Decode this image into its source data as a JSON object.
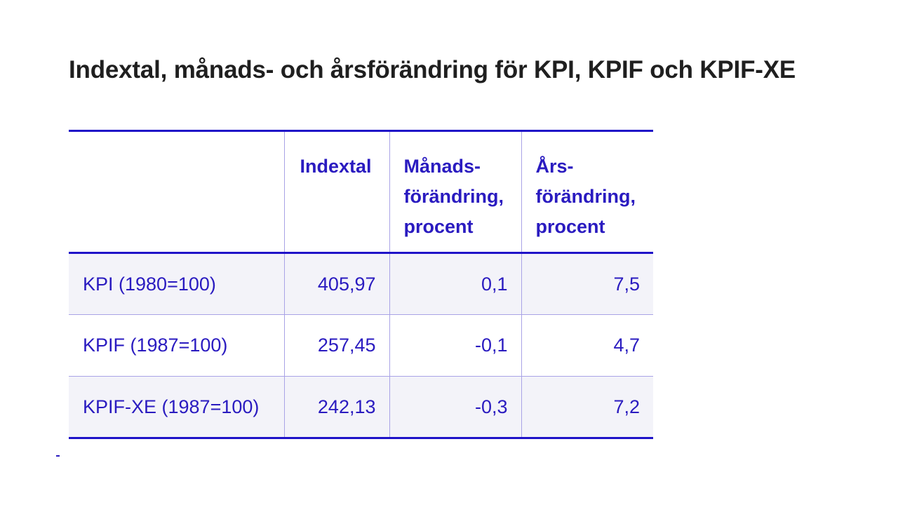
{
  "title": "Indextal, månads- och årsförändring för KPI, KPIF och KPIF-XE",
  "table": {
    "headers": [
      "",
      "Indextal",
      "Månads-\nförändring,\nprocent",
      "Års-\nförändring,\nprocent"
    ],
    "rows": [
      {
        "label": "KPI (1980=100)",
        "index": "405,97",
        "monthly": "0,1",
        "yearly": "7,5"
      },
      {
        "label": "KPIF (1987=100)",
        "index": "257,45",
        "monthly": "-0,1",
        "yearly": "4,7"
      },
      {
        "label": "KPIF-XE (1987=100)",
        "index": "242,13",
        "monthly": "-0,3",
        "yearly": "7,2"
      }
    ]
  },
  "colors": {
    "accent": "#1f13c8",
    "text": "#2a1bc0",
    "title": "#1f1f1f",
    "row_shade": "#f3f3f9",
    "rule": "#a9a3e6"
  }
}
